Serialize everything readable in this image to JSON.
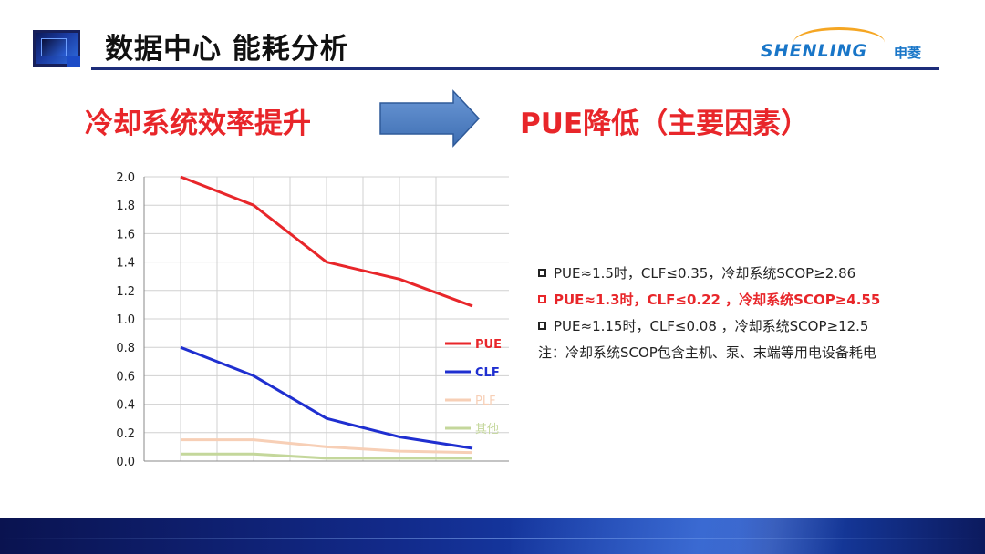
{
  "header": {
    "title": "数据中心 能耗分析",
    "brand_name": "SHENLING",
    "brand_cn": "申菱"
  },
  "headline": {
    "left": "冷却系统效率提升",
    "right": "PUE降低（主要因素）"
  },
  "colors": {
    "accent_red": "#e8262a",
    "navy": "#1d2d7a",
    "brand_blue": "#1976c8",
    "arrow_blue": "#4f7fc0"
  },
  "icons": {
    "logo": "logo-square-icon",
    "arrow": "right-arrow-icon",
    "checkbox": "square-bullet-icon"
  },
  "chart_data": {
    "type": "line",
    "x": [
      1,
      2,
      3,
      4,
      5
    ],
    "ylim": [
      0,
      2.0
    ],
    "yticks": [
      "0.0",
      "0.2",
      "0.4",
      "0.6",
      "0.8",
      "1.0",
      "1.2",
      "1.4",
      "1.6",
      "1.8",
      "2.0"
    ],
    "grid": true,
    "legend_position": "right",
    "series": [
      {
        "name": "PUE",
        "color": "#e8262a",
        "values": [
          2.0,
          1.8,
          1.4,
          1.28,
          1.09
        ]
      },
      {
        "name": "CLF",
        "color": "#1f2fd0",
        "values": [
          0.8,
          0.6,
          0.3,
          0.17,
          0.09
        ]
      },
      {
        "name": "PLF",
        "color": "#f7cfb6",
        "values": [
          0.15,
          0.15,
          0.1,
          0.07,
          0.06
        ]
      },
      {
        "name": "其他",
        "color": "#c4d79b",
        "values": [
          0.05,
          0.05,
          0.02,
          0.02,
          0.02
        ]
      }
    ]
  },
  "notes": [
    {
      "text": "PUE≈1.5时，CLF≤0.35，冷却系统SCOP≥2.86",
      "highlight": false,
      "bullet": true
    },
    {
      "text": "PUE≈1.3时，CLF≤0.22 ，冷却系统SCOP≥4.55",
      "highlight": true,
      "bullet": true
    },
    {
      "text": "PUE≈1.15时，CLF≤0.08 ，冷却系统SCOP≥12.5",
      "highlight": false,
      "bullet": true
    },
    {
      "text": "注：冷却系统SCOP包含主机、泵、末端等用电设备耗电",
      "highlight": false,
      "bullet": false
    }
  ]
}
